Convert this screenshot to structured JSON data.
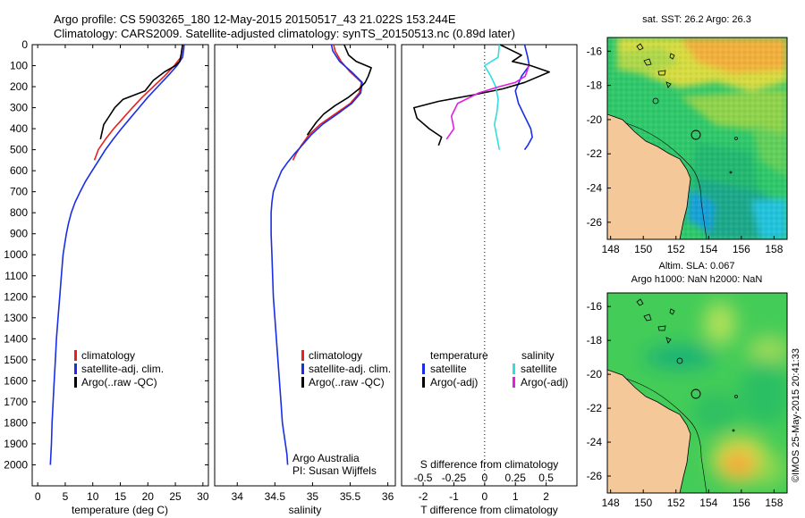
{
  "header": {
    "line1": "Argo profile: CS 5903265_180 12-May-2015 20150517_43 21.022S 153.244E",
    "line2": "Climatology: CARS2009. Satellite-adjusted climatology: synTS_20150513.nc (0.89d later)"
  },
  "stamp": "©IMOS 25-May-2015 20:41:33",
  "colors": {
    "climatology": "#e8211c",
    "satellite": "#1a2ee8",
    "argo": "#000000",
    "salinity_sat": "#33dddd",
    "salinity_argo": "#e020e0",
    "land": "#f5c89a"
  },
  "chart_data": [
    {
      "type": "line",
      "name": "temperature-profile",
      "xlabel": "temperature (deg C)",
      "ylabel": "",
      "xlim": [
        -1,
        31
      ],
      "ylim": [
        2100,
        0
      ],
      "xticks": [
        0,
        5,
        10,
        15,
        20,
        25,
        30
      ],
      "yticks": [
        0,
        100,
        200,
        300,
        400,
        500,
        600,
        700,
        800,
        900,
        1000,
        1100,
        1200,
        1300,
        1400,
        1500,
        1600,
        1700,
        1800,
        1900,
        2000
      ],
      "legend": [
        "climatology",
        "satellite-adj. clim.",
        "Argo(..raw -QC)"
      ],
      "legend_placement": "lower-center",
      "series": [
        {
          "name": "climatology",
          "color": "#e8211c",
          "x": [
            26.3,
            26.2,
            26.0,
            24.8,
            23.0,
            21.0,
            19.0,
            17.2,
            15.5,
            13.8,
            12.3,
            11.0,
            10.3
          ],
          "y": [
            0,
            25,
            60,
            100,
            150,
            200,
            250,
            300,
            350,
            400,
            450,
            500,
            550
          ]
        },
        {
          "name": "satellite-adj. clim.",
          "color": "#1a2ee8",
          "x": [
            26.6,
            26.5,
            26.3,
            25.3,
            23.6,
            21.8,
            20.0,
            18.4,
            16.8,
            15.2,
            13.7,
            12.3,
            11.1,
            9.9,
            8.7,
            7.7,
            6.8,
            6.1,
            5.6,
            5.2,
            4.9,
            4.6,
            4.3,
            4.0,
            3.7,
            3.4,
            3.2,
            3.0,
            2.8,
            2.6,
            2.5,
            2.4,
            2.3
          ],
          "y": [
            0,
            25,
            60,
            100,
            150,
            200,
            250,
            300,
            350,
            400,
            450,
            500,
            550,
            600,
            650,
            700,
            750,
            800,
            850,
            900,
            950,
            1000,
            1100,
            1200,
            1300,
            1400,
            1500,
            1600,
            1700,
            1800,
            1900,
            1950,
            2000
          ]
        },
        {
          "name": "Argo(..raw -QC)",
          "color": "#000000",
          "x": [
            26.3,
            26.1,
            25.8,
            25.0,
            23.0,
            21.0,
            19.5,
            17.5,
            15.5,
            14.0,
            13.0,
            12.0,
            11.4
          ],
          "y": [
            0,
            40,
            80,
            100,
            130,
            170,
            220,
            240,
            260,
            300,
            340,
            380,
            450
          ]
        }
      ]
    },
    {
      "type": "line",
      "name": "salinity-profile",
      "xlabel": "salinity",
      "ylabel": "",
      "xlim": [
        33.7,
        36.1
      ],
      "ylim": [
        2100,
        0
      ],
      "xticks": [
        34,
        34.5,
        35,
        35.5,
        36
      ],
      "legend": [
        "climatology",
        "satellite-adj. clim.",
        "Argo(..raw -QC)"
      ],
      "legend_placement": "lower-right",
      "annotation": [
        "Argo Australia",
        "PI: Susan Wijffels"
      ],
      "series": [
        {
          "name": "climatology",
          "color": "#e8211c",
          "x": [
            35.28,
            35.3,
            35.38,
            35.5,
            35.65,
            35.62,
            35.5,
            35.3,
            35.1,
            34.95,
            34.85,
            34.78,
            34.74
          ],
          "y": [
            0,
            30,
            80,
            130,
            180,
            230,
            280,
            330,
            380,
            430,
            480,
            520,
            550
          ]
        },
        {
          "name": "satellite-adj. clim.",
          "color": "#1a2ee8",
          "x": [
            35.25,
            35.27,
            35.36,
            35.52,
            35.66,
            35.64,
            35.52,
            35.33,
            35.13,
            34.98,
            34.86,
            34.76,
            34.67,
            34.59,
            34.53,
            34.48,
            34.46,
            34.45,
            34.45,
            34.45,
            34.46,
            34.47,
            34.48,
            34.5,
            34.52,
            34.54,
            34.56,
            34.58,
            34.6,
            34.62,
            34.64,
            34.66,
            34.67
          ],
          "y": [
            0,
            30,
            80,
            130,
            180,
            230,
            280,
            330,
            380,
            430,
            480,
            520,
            560,
            600,
            650,
            700,
            750,
            800,
            850,
            900,
            1000,
            1100,
            1200,
            1300,
            1400,
            1500,
            1600,
            1700,
            1800,
            1850,
            1900,
            1950,
            2000
          ]
        },
        {
          "name": "Argo(..raw -QC)",
          "color": "#000000",
          "x": [
            35.42,
            35.48,
            35.58,
            35.78,
            35.74,
            35.7,
            35.62,
            35.48,
            35.3,
            35.15,
            35.05,
            34.97,
            34.93
          ],
          "y": [
            0,
            50,
            80,
            110,
            150,
            180,
            210,
            250,
            290,
            330,
            370,
            410,
            430
          ]
        }
      ]
    },
    {
      "type": "line",
      "name": "difference-profile",
      "xlabel": "T difference from climatology",
      "x2label": "S difference from climatology",
      "xlim": [
        -2.7,
        3.0
      ],
      "x2lim": [
        -0.675,
        0.75
      ],
      "ylim": [
        2100,
        0
      ],
      "xticks": [
        -2,
        -1,
        0,
        1,
        2
      ],
      "x2ticks": [
        -0.5,
        -0.25,
        0,
        0.25,
        0.5
      ],
      "x2ticklabels": [
        "-0.5",
        "-0.25",
        "0",
        "0.25",
        "0.5"
      ],
      "legend_titles": [
        "temperature",
        "salinity"
      ],
      "legend": [
        "satellite",
        "Argo(-adj)",
        "satellite",
        "Argo(-adj)"
      ],
      "series": [
        {
          "name": "satellite",
          "group": "temperature",
          "color": "#1a2ee8",
          "x": [
            1.3,
            1.4,
            1.45,
            1.2,
            1.0,
            1.1,
            1.3,
            1.5,
            1.55,
            1.4,
            1.3
          ],
          "y": [
            0,
            60,
            100,
            150,
            220,
            280,
            340,
            400,
            440,
            480,
            500
          ]
        },
        {
          "name": "Argo(-adj)",
          "group": "temperature",
          "color": "#000000",
          "x": [
            0.5,
            1.2,
            0.9,
            1.5,
            2.1,
            1.3,
            0.6,
            -0.4,
            -1.5,
            -2.3,
            -2.2,
            -1.8,
            -1.4,
            -1.5
          ],
          "y": [
            0,
            50,
            80,
            100,
            130,
            180,
            210,
            240,
            270,
            300,
            350,
            400,
            440,
            480
          ]
        },
        {
          "name": "satellite",
          "group": "salinity",
          "color": "#33dddd",
          "x": [
            0.12,
            0.11,
            0.0,
            0.05,
            0.09,
            0.11,
            0.1,
            0.08,
            0.1,
            0.12
          ],
          "y": [
            0,
            60,
            100,
            150,
            200,
            260,
            320,
            380,
            440,
            500
          ]
        },
        {
          "name": "Argo(-adj)",
          "group": "salinity",
          "color": "#e020e0",
          "x": [
            0.36,
            0.33,
            0.25,
            0.12,
            -0.05,
            -0.22,
            -0.27,
            -0.25,
            -0.31
          ],
          "y": [
            100,
            150,
            180,
            200,
            230,
            280,
            340,
            400,
            450
          ]
        }
      ]
    },
    {
      "type": "heatmap",
      "name": "sst-map",
      "title": "sat. SST: 26.2  Argo: 26.3",
      "xlim": [
        147.8,
        158.8
      ],
      "ylim": [
        -27,
        -15.2
      ],
      "xticks": [
        148,
        150,
        152,
        154,
        156,
        158
      ],
      "yticks": [
        -16,
        -18,
        -20,
        -22,
        -24,
        -26
      ]
    },
    {
      "type": "heatmap",
      "name": "sla-map",
      "title": "Altim. SLA: 0.067",
      "subtitle": "Argo h1000: NaN h2000: NaN",
      "xlim": [
        147.8,
        158.8
      ],
      "ylim": [
        -27,
        -15.2
      ],
      "xticks": [
        148,
        150,
        152,
        154,
        156,
        158
      ],
      "yticks": [
        -16,
        -18,
        -20,
        -22,
        -24,
        -26
      ]
    }
  ]
}
